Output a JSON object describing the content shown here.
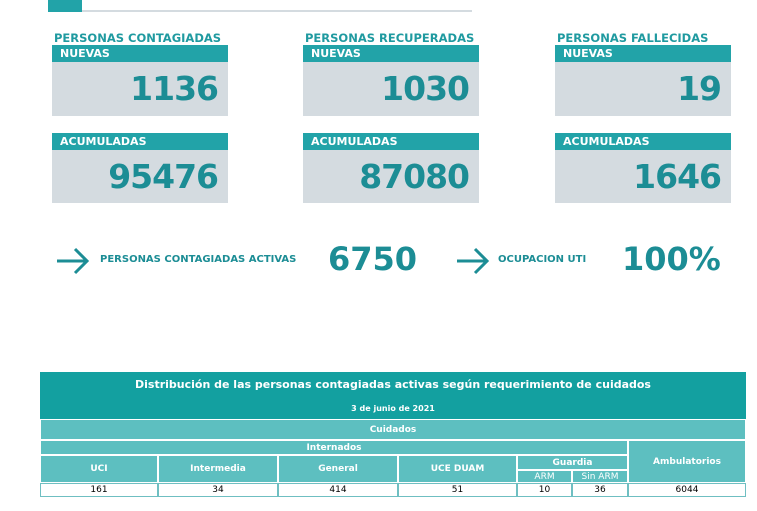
{
  "cards": [
    {
      "title": "PERSONAS CONTAGIADAS",
      "new_label": "NUEVAS",
      "new_value": 1136,
      "total_label": "ACUMULADAS",
      "total_value": 95476
    },
    {
      "title": "PERSONAS RECUPERADAS",
      "new_label": "NUEVAS",
      "new_value": 1030,
      "total_label": "ACUMULADAS",
      "total_value": 87080
    },
    {
      "title": "PERSONAS FALLECIDAS",
      "new_label": "NUEVAS",
      "new_value": 19,
      "total_label": "ACUMULADAS",
      "total_value": 1646
    }
  ],
  "summary": [
    {
      "label": "PERSONAS CONTAGIADAS ACTIVAS",
      "value": 6750
    },
    {
      "label": "OCUPACION UTI",
      "value": "100%"
    }
  ],
  "table": {
    "title": "Distribución de las personas contagiadas activas según requerimiento de cuidados",
    "date": "3 de junio de 2021",
    "group": "Cuidados",
    "subgroup": "Internados",
    "columns": [
      "UCI",
      "Intermedia",
      "General",
      "UCE DUAM"
    ],
    "guardia": "Guardia",
    "guardia_columns": [
      "ARM",
      "Sin ARM"
    ],
    "ambulatorios": "Ambulatorios",
    "row": [
      161,
      34,
      414,
      51,
      10,
      36,
      6044
    ]
  }
}
